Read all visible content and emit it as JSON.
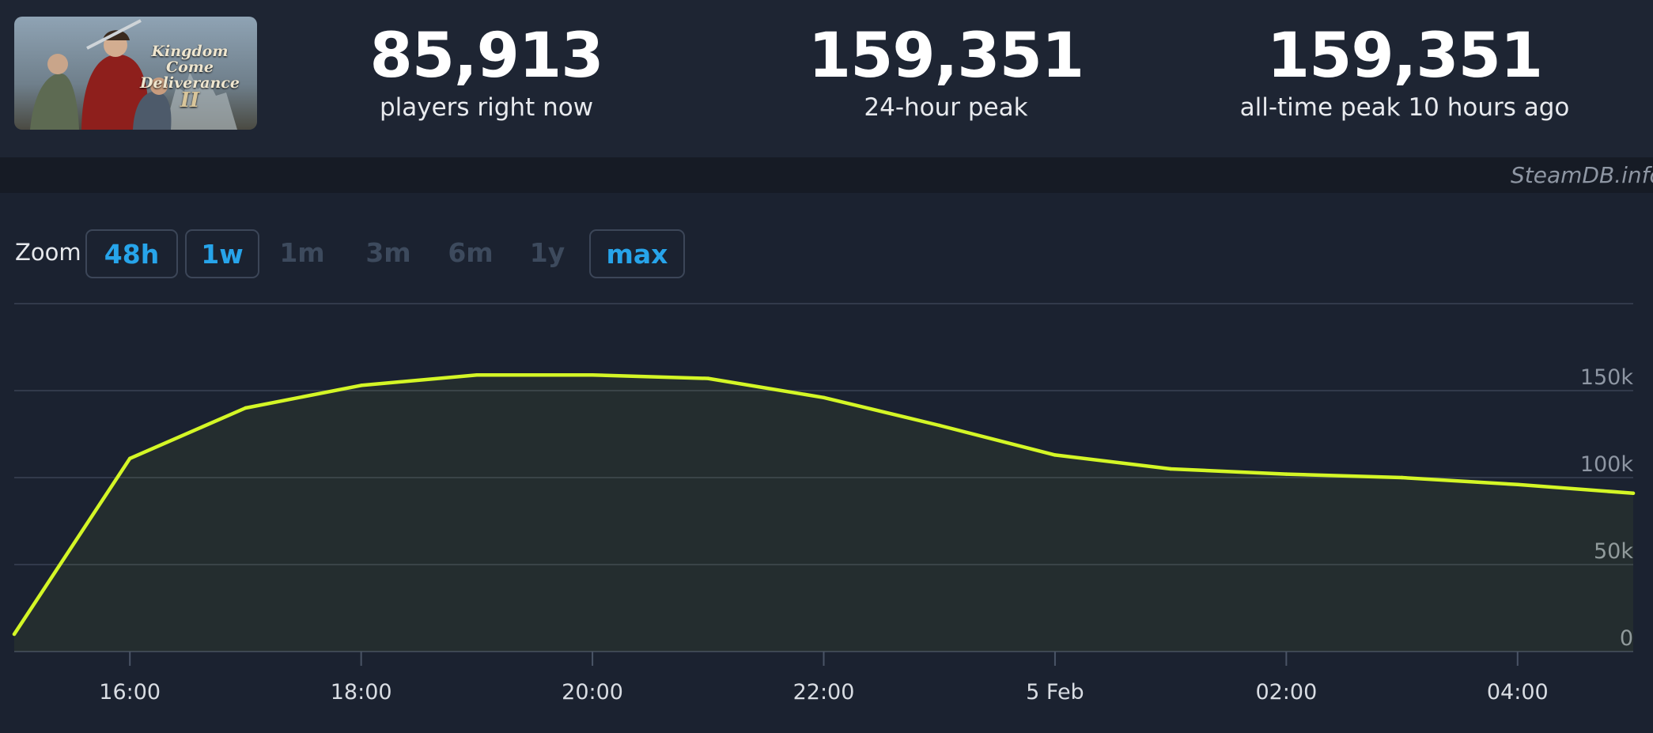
{
  "header": {
    "game_logo": {
      "label_line1": "Kingdom Come",
      "label_line2": "Deliverance",
      "numeral": "II"
    },
    "stats": [
      {
        "value": "85,913",
        "label": "players right now"
      },
      {
        "value": "159,351",
        "label": "24-hour peak"
      },
      {
        "value": "159,351",
        "label": "all-time peak 10 hours ago"
      }
    ]
  },
  "credit": "SteamDB.info",
  "zoom": {
    "label": "Zoom",
    "options": [
      {
        "label": "48h",
        "state": "active"
      },
      {
        "label": "1w",
        "state": "active"
      },
      {
        "label": "1m",
        "state": "disabled"
      },
      {
        "label": "3m",
        "state": "disabled"
      },
      {
        "label": "6m",
        "state": "disabled"
      },
      {
        "label": "1y",
        "state": "disabled"
      },
      {
        "label": "max",
        "state": "active"
      }
    ]
  },
  "colors": {
    "background": "#1b2230",
    "line": "#d4f626",
    "accent": "#27a4ea",
    "grid": "#3a4354"
  },
  "chart_data": {
    "type": "line",
    "x_unit": "hour",
    "x_start": 15.0,
    "x_end": 29.0,
    "x_ticks": [
      {
        "x": 16,
        "label": "16:00"
      },
      {
        "x": 18,
        "label": "18:00"
      },
      {
        "x": 20,
        "label": "20:00"
      },
      {
        "x": 22,
        "label": "22:00"
      },
      {
        "x": 24,
        "label": "5 Feb"
      },
      {
        "x": 26,
        "label": "02:00"
      },
      {
        "x": 28,
        "label": "04:00"
      }
    ],
    "y_ticks": [
      0,
      50000,
      100000,
      150000
    ],
    "y_tick_labels": [
      "0",
      "50k",
      "100k",
      "150k"
    ],
    "ylim": [
      0,
      200000
    ],
    "grid": true,
    "series": [
      {
        "x": [
          15.0,
          16,
          17,
          18,
          19,
          20,
          21,
          22,
          23,
          24,
          25,
          26,
          27,
          28,
          29.0
        ],
        "y": [
          10000,
          111000,
          140000,
          153000,
          159000,
          159000,
          157000,
          146000,
          130000,
          113000,
          105000,
          102000,
          100000,
          96000,
          91000
        ]
      }
    ]
  }
}
